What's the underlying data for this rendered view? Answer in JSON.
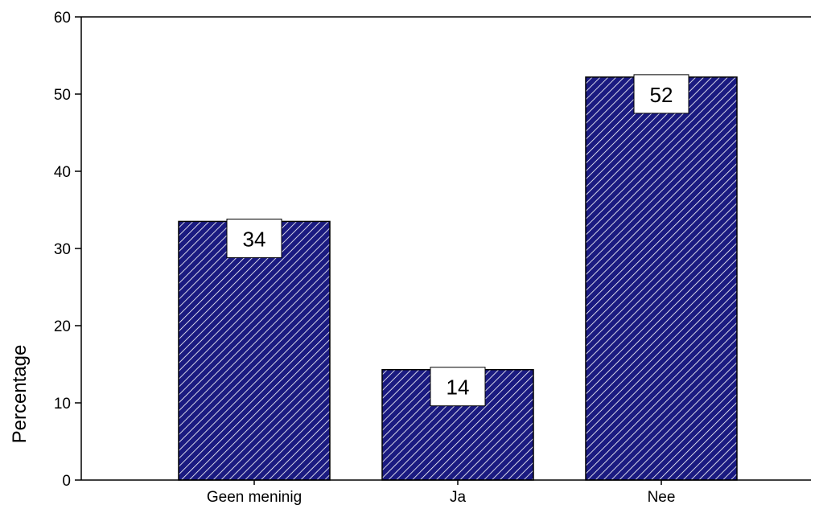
{
  "chart_data": {
    "type": "bar",
    "title": "",
    "xlabel": "",
    "ylabel": "Percentage",
    "categories": [
      "Geen meninig",
      "Ja",
      "Nee"
    ],
    "values": [
      33.5,
      14.3,
      52.2
    ],
    "data_labels": [
      "34",
      "14",
      "52"
    ],
    "ylim": [
      0,
      60
    ],
    "yticks": [
      0,
      10,
      20,
      30,
      40,
      50,
      60
    ],
    "grid": false,
    "legend": "none",
    "bar_color": "#1a1a80",
    "bar_pattern": "diagonal-hatch-white"
  }
}
